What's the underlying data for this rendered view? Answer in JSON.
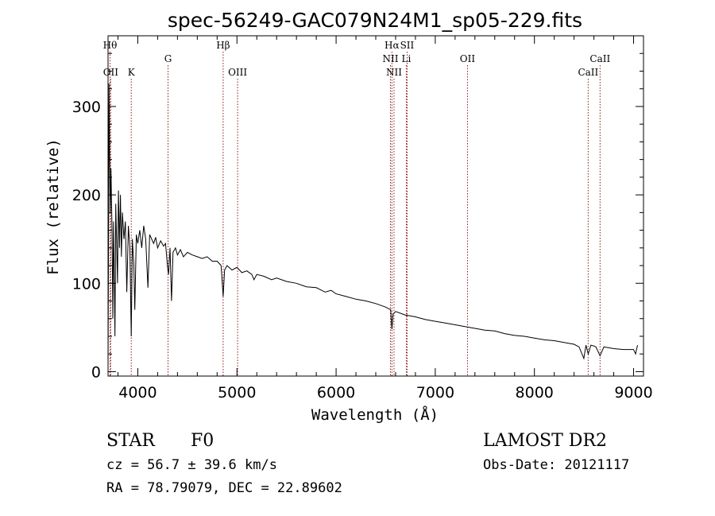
{
  "chart_data": {
    "type": "line",
    "title": "spec-56249-GAC079N24M1_sp05-229.fits",
    "xlabel": "Wavelength (Å)",
    "ylabel": "Flux (relative)",
    "xlim": [
      3700,
      9100
    ],
    "ylim": [
      -5,
      380
    ],
    "xticks": [
      4000,
      5000,
      6000,
      7000,
      8000,
      9000
    ],
    "yticks": [
      0,
      100,
      200,
      300
    ],
    "grid": false,
    "series": [
      {
        "points": [
          [
            3700,
            5
          ],
          [
            3705,
            150
          ],
          [
            3710,
            340
          ],
          [
            3715,
            250
          ],
          [
            3722,
            180
          ],
          [
            3730,
            230
          ],
          [
            3740,
            160
          ],
          [
            3748,
            60
          ],
          [
            3755,
            170
          ],
          [
            3762,
            120
          ],
          [
            3770,
            40
          ],
          [
            3778,
            190
          ],
          [
            3786,
            150
          ],
          [
            3795,
            100
          ],
          [
            3805,
            205
          ],
          [
            3815,
            140
          ],
          [
            3825,
            200
          ],
          [
            3835,
            130
          ],
          [
            3845,
            180
          ],
          [
            3860,
            150
          ],
          [
            3875,
            170
          ],
          [
            3889,
            90
          ],
          [
            3905,
            165
          ],
          [
            3920,
            140
          ],
          [
            3934,
            40
          ],
          [
            3945,
            150
          ],
          [
            3960,
            120
          ],
          [
            3970,
            70
          ],
          [
            3985,
            155
          ],
          [
            4000,
            145
          ],
          [
            4020,
            160
          ],
          [
            4040,
            140
          ],
          [
            4060,
            165
          ],
          [
            4080,
            150
          ],
          [
            4102,
            95
          ],
          [
            4120,
            155
          ],
          [
            4140,
            150
          ],
          [
            4160,
            145
          ],
          [
            4180,
            152
          ],
          [
            4200,
            140
          ],
          [
            4230,
            148
          ],
          [
            4260,
            142
          ],
          [
            4280,
            145
          ],
          [
            4300,
            118
          ],
          [
            4310,
            110
          ],
          [
            4325,
            140
          ],
          [
            4340,
            80
          ],
          [
            4355,
            135
          ],
          [
            4380,
            140
          ],
          [
            4400,
            132
          ],
          [
            4430,
            138
          ],
          [
            4460,
            130
          ],
          [
            4500,
            135
          ],
          [
            4550,
            132
          ],
          [
            4600,
            130
          ],
          [
            4650,
            128
          ],
          [
            4700,
            130
          ],
          [
            4750,
            125
          ],
          [
            4800,
            125
          ],
          [
            4840,
            120
          ],
          [
            4861,
            85
          ],
          [
            4875,
            115
          ],
          [
            4900,
            120
          ],
          [
            4950,
            115
          ],
          [
            5000,
            118
          ],
          [
            5050,
            112
          ],
          [
            5100,
            114
          ],
          [
            5150,
            110
          ],
          [
            5172,
            104
          ],
          [
            5200,
            110
          ],
          [
            5270,
            108
          ],
          [
            5350,
            104
          ],
          [
            5400,
            106
          ],
          [
            5500,
            102
          ],
          [
            5600,
            100
          ],
          [
            5700,
            96
          ],
          [
            5800,
            95
          ],
          [
            5890,
            90
          ],
          [
            5950,
            92
          ],
          [
            6000,
            88
          ],
          [
            6100,
            85
          ],
          [
            6200,
            82
          ],
          [
            6300,
            80
          ],
          [
            6400,
            77
          ],
          [
            6500,
            73
          ],
          [
            6550,
            70
          ],
          [
            6563,
            48
          ],
          [
            6575,
            65
          ],
          [
            6600,
            68
          ],
          [
            6700,
            64
          ],
          [
            6800,
            62
          ],
          [
            6900,
            59
          ],
          [
            7000,
            57
          ],
          [
            7100,
            55
          ],
          [
            7200,
            53
          ],
          [
            7300,
            51
          ],
          [
            7400,
            49
          ],
          [
            7500,
            47
          ],
          [
            7600,
            46
          ],
          [
            7700,
            43
          ],
          [
            7800,
            41
          ],
          [
            7900,
            40
          ],
          [
            8000,
            38
          ],
          [
            8100,
            36
          ],
          [
            8200,
            35
          ],
          [
            8300,
            33
          ],
          [
            8400,
            31
          ],
          [
            8450,
            28
          ],
          [
            8498,
            15
          ],
          [
            8520,
            30
          ],
          [
            8542,
            20
          ],
          [
            8570,
            30
          ],
          [
            8600,
            29
          ],
          [
            8620,
            28
          ],
          [
            8662,
            18
          ],
          [
            8700,
            28
          ],
          [
            8800,
            26
          ],
          [
            8900,
            25
          ],
          [
            9000,
            25
          ],
          [
            9020,
            20
          ],
          [
            9040,
            30
          ]
        ]
      }
    ],
    "lines": [
      {
        "label": "Hθ",
        "wavelength": 3720,
        "row": 0
      },
      {
        "label": "OII",
        "wavelength": 3727,
        "row": 2
      },
      {
        "label": "K",
        "wavelength": 3934,
        "row": 2
      },
      {
        "label": "G",
        "wavelength": 4305,
        "row": 1
      },
      {
        "label": "Hβ",
        "wavelength": 4861,
        "row": 0
      },
      {
        "label": "OIII",
        "wavelength": 5007,
        "row": 2
      },
      {
        "label": "Hα",
        "wavelength": 6563,
        "row": 0
      },
      {
        "label": "SII",
        "wavelength": 6716,
        "row": 0
      },
      {
        "label": "NII",
        "wavelength": 6548,
        "row": 1
      },
      {
        "label": "Li",
        "wavelength": 6708,
        "row": 1
      },
      {
        "label": "NII",
        "wavelength": 6584,
        "row": 2
      },
      {
        "label": "OII",
        "wavelength": 7325,
        "row": 1
      },
      {
        "label": "CaII",
        "wavelength": 8542,
        "row": 2
      },
      {
        "label": "CaII",
        "wavelength": 8662,
        "row": 1
      }
    ],
    "line_color": "#8b1a1a",
    "spectrum_color": "#000000"
  },
  "info": {
    "object_class": "STAR",
    "subclass": "F0",
    "survey": "LAMOST DR2",
    "cz": "cz = 56.7 ± 39.6 km/s",
    "obs_date": "Obs-Date: 20121117",
    "coords": "RA =  78.79079, DEC =  22.89602"
  }
}
